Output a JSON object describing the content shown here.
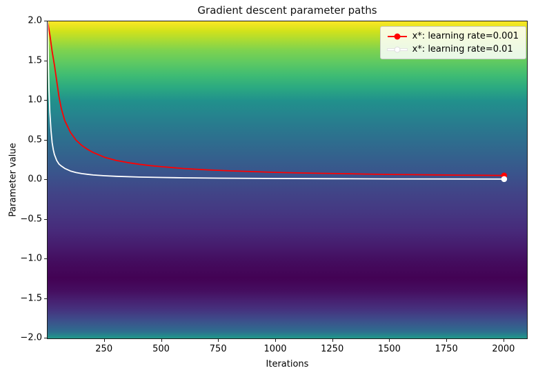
{
  "chart_data": {
    "type": "line",
    "title": "Gradient descent parameter paths",
    "xlabel": "Iterations",
    "ylabel": "Parameter value",
    "xlim": [
      0,
      2100
    ],
    "ylim": [
      -2,
      2
    ],
    "grid": false,
    "legend_position": "upper right",
    "x_ticks": [
      250,
      500,
      750,
      1000,
      1250,
      1500,
      1750,
      2000
    ],
    "x_tick_labels": [
      "250",
      "500",
      "750",
      "1000",
      "1250",
      "1500",
      "1750",
      "2000"
    ],
    "y_ticks": [
      2.0,
      1.5,
      1.0,
      0.5,
      0.0,
      -0.5,
      -1.0,
      -1.5,
      -2.0
    ],
    "y_tick_labels": [
      "2.0",
      "1.5",
      "1.0",
      "0.5",
      "0.0",
      "−0.5",
      "−1.0",
      "−1.5",
      "−2.0"
    ],
    "background": {
      "type": "vertical-gradient",
      "colormap": "viridis",
      "stops": [
        {
          "pos": 0,
          "color": "#fde725"
        },
        {
          "pos": 3,
          "color": "#d2e21b"
        },
        {
          "pos": 6,
          "color": "#a8db34"
        },
        {
          "pos": 9,
          "color": "#7fd34e"
        },
        {
          "pos": 13,
          "color": "#5ec962"
        },
        {
          "pos": 17,
          "color": "#3fbc73"
        },
        {
          "pos": 21,
          "color": "#2ba981"
        },
        {
          "pos": 25,
          "color": "#21918c"
        },
        {
          "pos": 30,
          "color": "#26828e"
        },
        {
          "pos": 36,
          "color": "#2c728e"
        },
        {
          "pos": 42,
          "color": "#33638d"
        },
        {
          "pos": 48,
          "color": "#3a548c"
        },
        {
          "pos": 54,
          "color": "#414487"
        },
        {
          "pos": 60,
          "color": "#453882"
        },
        {
          "pos": 66,
          "color": "#472a7a"
        },
        {
          "pos": 71,
          "color": "#461b6d"
        },
        {
          "pos": 76,
          "color": "#440c5e"
        },
        {
          "pos": 81,
          "color": "#430254"
        },
        {
          "pos": 85,
          "color": "#450e60"
        },
        {
          "pos": 88,
          "color": "#472070"
        },
        {
          "pos": 91,
          "color": "#45327e"
        },
        {
          "pos": 94,
          "color": "#3e4c8a"
        },
        {
          "pos": 96,
          "color": "#365d8d"
        },
        {
          "pos": 98,
          "color": "#2d708e"
        },
        {
          "pos": 100,
          "color": "#1f998a"
        }
      ]
    },
    "series": [
      {
        "name": "x*: learning rate=0.001",
        "color": "#ff0000",
        "marker_end": {
          "x": 2000,
          "y": 0.055
        },
        "x": [
          0,
          10,
          20,
          30,
          40,
          50,
          60,
          75,
          100,
          125,
          150,
          175,
          200,
          250,
          300,
          350,
          400,
          450,
          500,
          600,
          700,
          800,
          900,
          1000,
          1100,
          1200,
          1300,
          1400,
          1500,
          1600,
          1700,
          1800,
          1900,
          2000
        ],
        "y": [
          2.0,
          1.83,
          1.62,
          1.45,
          1.25,
          1.05,
          0.9,
          0.75,
          0.6,
          0.5,
          0.435,
          0.385,
          0.345,
          0.285,
          0.246,
          0.219,
          0.197,
          0.18,
          0.166,
          0.143,
          0.126,
          0.114,
          0.104,
          0.095,
          0.088,
          0.083,
          0.078,
          0.073,
          0.069,
          0.066,
          0.063,
          0.06,
          0.058,
          0.055
        ]
      },
      {
        "name": "x*: learning rate=0.01",
        "color": "#ffffff",
        "marker_end": {
          "x": 2000,
          "y": 0.01
        },
        "x": [
          0,
          3,
          6,
          10,
          15,
          20,
          25,
          30,
          40,
          50,
          60,
          75,
          100,
          125,
          150,
          200,
          250,
          300,
          400,
          500,
          600,
          750,
          1000,
          1250,
          1500,
          1750,
          2000
        ],
        "y": [
          2.0,
          1.55,
          1.15,
          0.85,
          0.62,
          0.47,
          0.38,
          0.32,
          0.245,
          0.2,
          0.175,
          0.145,
          0.112,
          0.092,
          0.079,
          0.062,
          0.052,
          0.045,
          0.036,
          0.03,
          0.026,
          0.022,
          0.017,
          0.0145,
          0.0125,
          0.011,
          0.01
        ]
      }
    ]
  }
}
